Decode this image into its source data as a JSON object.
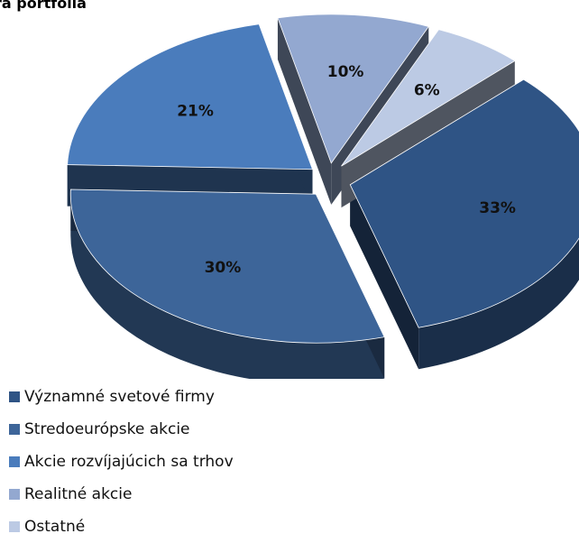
{
  "chart_data": {
    "type": "pie",
    "title": "ra portfólia",
    "categories": [
      "Významné svetové firmy",
      "Stredoeurópske akcie",
      "Akcie rozvíjajúcich sa trhov",
      "Realitné akcie",
      "Ostatné"
    ],
    "values": [
      33,
      30,
      21,
      10,
      6
    ],
    "value_labels": [
      "33%",
      "30%",
      "21%",
      "10%",
      "6%"
    ],
    "colors": [
      "#2f5485",
      "#3d6599",
      "#4a7cbc",
      "#93a8d0",
      "#bccae4"
    ],
    "legend_position": "bottom-left",
    "exploded": true,
    "three_d": true
  }
}
